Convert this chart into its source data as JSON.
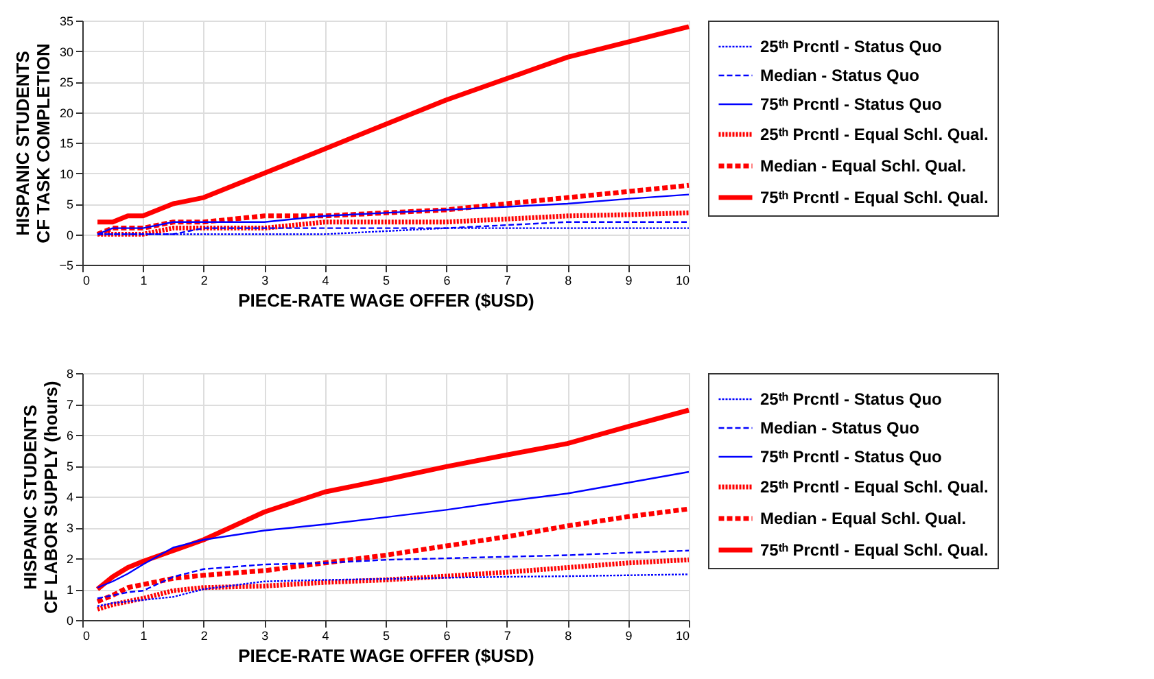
{
  "chart_data": [
    {
      "type": "line",
      "xlabel": "PIECE-RATE WAGE OFFER ($USD)",
      "ylabel": "HISPANIC STUDENTS\nCF TASK COMPLETION",
      "x": [
        0.25,
        0.5,
        0.75,
        1,
        1.5,
        2,
        3,
        4,
        5,
        6,
        7,
        8,
        9,
        10
      ],
      "xlim": [
        0,
        10
      ],
      "xticks": [
        0,
        1,
        2,
        3,
        4,
        5,
        6,
        7,
        8,
        9,
        10
      ],
      "ylim": [
        -5,
        35
      ],
      "yticks": [
        -5,
        0,
        5,
        10,
        15,
        20,
        25,
        30,
        35
      ],
      "grid": true,
      "legend": "right",
      "marker": "none",
      "series": [
        {
          "name": "25ᵗʰ Prcntl - Status Quo",
          "color": "#0000ff",
          "line_style": "dotted",
          "values": [
            0,
            0,
            0,
            0,
            0,
            0,
            0,
            0,
            0.5,
            1,
            1,
            1,
            1,
            1
          ]
        },
        {
          "name": "Median - Status Quo",
          "color": "#0000ff",
          "line_style": "dashed",
          "values": [
            0,
            0,
            0,
            0,
            0,
            1,
            1,
            1,
            1,
            1,
            1.5,
            2,
            2,
            2
          ]
        },
        {
          "name": "75ᵗʰ Prcntl - Status Quo",
          "color": "#0000ff",
          "line_style": "solid",
          "values": [
            0,
            1,
            1,
            1,
            2,
            2,
            2,
            3,
            3.5,
            4,
            4.5,
            5,
            5.8,
            6.5
          ]
        },
        {
          "name": "25ᵗʰ Prcntl - Equal Schl. Qual.",
          "color": "#ff0000",
          "line_style": "dotted",
          "values": [
            0,
            0,
            0,
            0,
            1,
            1,
            1,
            2,
            2,
            2,
            2.5,
            3,
            3.2,
            3.5
          ]
        },
        {
          "name": "Median - Equal Schl. Qual.",
          "color": "#ff0000",
          "line_style": "dashed",
          "values": [
            0,
            1,
            1,
            1,
            2,
            2,
            3,
            3,
            3.5,
            4,
            5,
            6,
            7,
            8
          ]
        },
        {
          "name": "75ᵗʰ Prcntl - Equal Schl. Qual.",
          "color": "#ff0000",
          "line_style": "solid",
          "values": [
            2,
            2,
            3,
            3,
            5,
            6,
            10,
            14,
            18,
            22,
            25.5,
            29,
            31.5,
            34
          ]
        }
      ]
    },
    {
      "type": "line",
      "xlabel": "PIECE-RATE WAGE OFFER ($USD)",
      "ylabel": "HISPANIC STUDENTS\nCF LABOR SUPPLY (hours)",
      "x": [
        0.25,
        0.5,
        0.75,
        1,
        1.5,
        2,
        3,
        4,
        5,
        6,
        7,
        8,
        9,
        10
      ],
      "xlim": [
        0,
        10
      ],
      "xticks": [
        0,
        1,
        2,
        3,
        4,
        5,
        6,
        7,
        8,
        9,
        10
      ],
      "ylim": [
        0,
        8
      ],
      "yticks": [
        0,
        1,
        2,
        3,
        4,
        5,
        6,
        7,
        8
      ],
      "grid": true,
      "legend": "right",
      "marker": "none",
      "series": [
        {
          "name": "25ᵗʰ Prcntl - Status Quo",
          "color": "#0000ff",
          "line_style": "dotted",
          "values": [
            0.45,
            0.55,
            0.6,
            0.65,
            0.75,
            1.0,
            1.25,
            1.3,
            1.33,
            1.37,
            1.4,
            1.42,
            1.45,
            1.48
          ]
        },
        {
          "name": "Median - Status Quo",
          "color": "#0000ff",
          "line_style": "dashed",
          "values": [
            0.7,
            0.8,
            0.9,
            0.95,
            1.4,
            1.65,
            1.8,
            1.85,
            1.95,
            2.0,
            2.05,
            2.1,
            2.18,
            2.25
          ]
        },
        {
          "name": "75ᵗʰ Prcntl - Status Quo",
          "color": "#0000ff",
          "line_style": "solid",
          "values": [
            1.05,
            1.25,
            1.5,
            1.8,
            2.35,
            2.6,
            2.9,
            3.1,
            3.33,
            3.57,
            3.85,
            4.1,
            4.45,
            4.8
          ]
        },
        {
          "name": "25ᵗʰ Prcntl - Equal Schl. Qual.",
          "color": "#ff0000",
          "line_style": "dotted",
          "values": [
            0.35,
            0.5,
            0.6,
            0.7,
            0.95,
            1.05,
            1.1,
            1.22,
            1.3,
            1.42,
            1.55,
            1.7,
            1.85,
            1.95
          ]
        },
        {
          "name": "Median - Equal Schl. Qual.",
          "color": "#ff0000",
          "line_style": "dashed",
          "values": [
            0.6,
            0.8,
            1.05,
            1.15,
            1.35,
            1.45,
            1.6,
            1.85,
            2.1,
            2.4,
            2.7,
            3.05,
            3.35,
            3.6
          ]
        },
        {
          "name": "75ᵗʰ Prcntl - Equal Schl. Qual.",
          "color": "#ff0000",
          "line_style": "solid",
          "values": [
            1.0,
            1.4,
            1.7,
            1.9,
            2.25,
            2.6,
            3.5,
            4.15,
            4.55,
            4.97,
            5.35,
            5.72,
            6.27,
            6.8
          ]
        }
      ]
    }
  ]
}
